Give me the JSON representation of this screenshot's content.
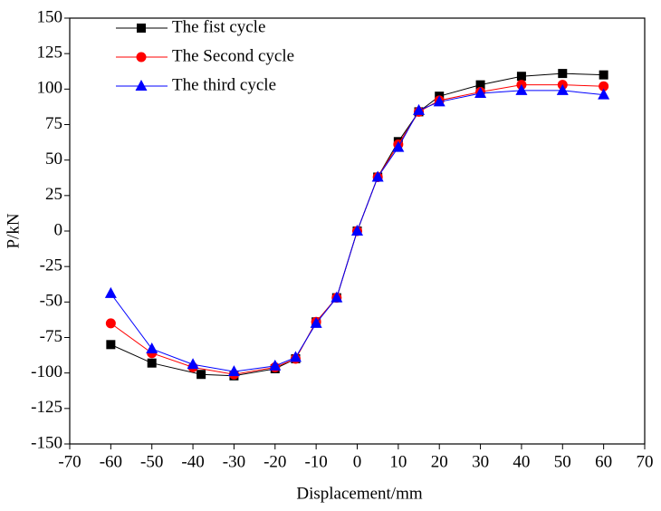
{
  "chart_data": {
    "type": "line",
    "x_label": "Displacement/mm",
    "y_label": "P/kN",
    "xlim": [
      -70,
      70
    ],
    "xticks": [
      -70,
      -60,
      -50,
      -40,
      -30,
      -20,
      -10,
      0,
      10,
      20,
      30,
      40,
      50,
      60,
      70
    ],
    "ylim": [
      -150,
      150
    ],
    "yticks": [
      -150,
      -125,
      -100,
      -75,
      -50,
      -25,
      0,
      25,
      50,
      75,
      100,
      125,
      150
    ],
    "legend": "upper-left",
    "series": [
      {
        "name": "The fist cycle",
        "color": "#000000",
        "marker": "square",
        "x": [
          -60,
          -50,
          -38,
          -30,
          -20,
          -15,
          -10,
          -5,
          0,
          5,
          10,
          15,
          20,
          30,
          40,
          50,
          60
        ],
        "values": [
          -80,
          -93,
          -101,
          -102,
          -97,
          -90,
          -64,
          -47,
          0,
          38,
          63,
          84,
          95,
          103,
          109,
          111,
          110
        ]
      },
      {
        "name": "The Second cycle",
        "color": "#ff0000",
        "marker": "circle",
        "x": [
          -60,
          -50,
          -40,
          -30,
          -20,
          -15,
          -10,
          -5,
          0,
          5,
          10,
          15,
          20,
          30,
          40,
          50,
          60
        ],
        "values": [
          -65,
          -86,
          -96,
          -101,
          -96,
          -90,
          -64,
          -47,
          0,
          38,
          61,
          84,
          92,
          98,
          103,
          103,
          102
        ]
      },
      {
        "name": "The third cycle",
        "color": "#0000ff",
        "marker": "triangle",
        "x": [
          -60,
          -50,
          -40,
          -30,
          -20,
          -15,
          -10,
          -5,
          0,
          5,
          10,
          15,
          20,
          30,
          40,
          50,
          60
        ],
        "values": [
          -44,
          -83,
          -94,
          -99,
          -95,
          -89,
          -65,
          -47,
          0,
          38,
          59,
          85,
          91,
          97,
          99,
          99,
          96
        ]
      }
    ]
  }
}
